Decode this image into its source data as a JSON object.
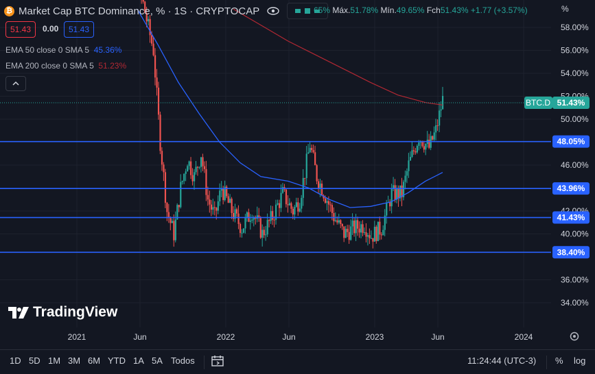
{
  "header": {
    "title": "Market Cap BTC Dominance, % · 1S · CRYPTOCAP",
    "coin_symbol": "₿",
    "ohlc_open_partial": "65%",
    "high_label": "Máx.",
    "high_value": "51.78%",
    "low_label": "Mín.",
    "low_value": "49.65%",
    "close_label": "Fch",
    "close_value": "51.43%",
    "change_value": "+1.77 (+3.57%)"
  },
  "price_boxes": {
    "sell": "51.43",
    "spread": "0.00",
    "buy": "51.43"
  },
  "indicators": [
    {
      "label": "EMA 50 close 0 SMA 5",
      "value": "45.36%",
      "color": "#2962ff"
    },
    {
      "label": "EMA 200 close 0 SMA 5",
      "value": "51.23%",
      "color": "#b22833"
    }
  ],
  "axis_unit": "%",
  "symbol_tag": "BTC.D",
  "current_price_label": "51.43%",
  "horizontal_lines": [
    "48.05%",
    "43.96%",
    "41.43%",
    "38.40%"
  ],
  "price_ticks": [
    "58.00%",
    "56.00%",
    "54.00%",
    "52.00%",
    "50.00%",
    "46.00%",
    "42.00%",
    "40.00%",
    "36.00%",
    "34.00%"
  ],
  "time_ticks": [
    "2021",
    "Jun",
    "2022",
    "Jun",
    "2023",
    "Jun",
    "2024"
  ],
  "watermark": "TradingView",
  "timeframes": [
    "1D",
    "5D",
    "1M",
    "3M",
    "6M",
    "YTD",
    "1A",
    "5A",
    "Todos"
  ],
  "clock": "11:24:44 (UTC-3)",
  "percent_toggle": "%",
  "log_toggle": "log",
  "colors": {
    "background": "#131722",
    "up": "#26a69a",
    "down": "#ef5350",
    "line": "#2962ff",
    "ema50": "#2962ff",
    "ema200": "#b22833"
  },
  "chart_data": {
    "type": "candlestick",
    "symbol": "BTC.D",
    "interval": "1W",
    "ylim": [
      33,
      59.5
    ],
    "xlabels": [
      "2021",
      "Jun",
      "2022",
      "Jun",
      "2023",
      "Jun",
      "2024"
    ],
    "last_close": 51.43,
    "high": 51.78,
    "low": 49.65,
    "ema50_last": 45.36,
    "ema200_last": 51.23,
    "hlines": [
      48.05,
      43.96,
      41.43,
      38.4
    ]
  }
}
